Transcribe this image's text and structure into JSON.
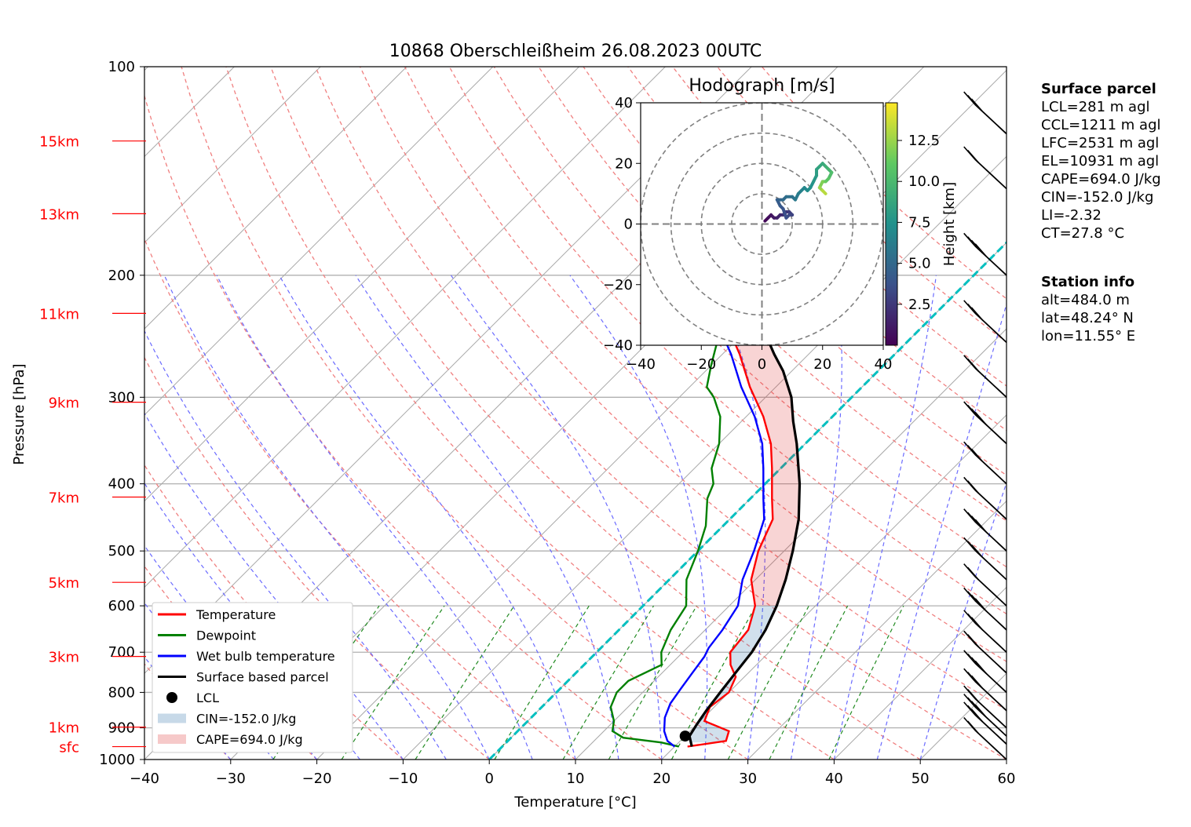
{
  "title": "10868 Oberschleißheim 26.08.2023 00UTC",
  "chart_data": {
    "type": "skew-t",
    "xlabel": "Temperature [°C]",
    "ylabel": "Pressure [hPa]",
    "xlim": [
      -40,
      60
    ],
    "ylim": [
      1000,
      100
    ],
    "x_ticks": [
      -40,
      -30,
      -20,
      -10,
      0,
      10,
      20,
      30,
      40,
      50,
      60
    ],
    "x_tick_labels": [
      "−40",
      "−30",
      "−20",
      "−10",
      "0",
      "10",
      "20",
      "30",
      "40",
      "50",
      "60"
    ],
    "y_ticks": [
      100,
      200,
      300,
      400,
      500,
      600,
      700,
      800,
      900,
      1000
    ],
    "height_labels": [
      {
        "label": "15km",
        "p": 128
      },
      {
        "label": "13km",
        "p": 163
      },
      {
        "label": "11km",
        "p": 227
      },
      {
        "label": "9km",
        "p": 305
      },
      {
        "label": "7km",
        "p": 418
      },
      {
        "label": "5km",
        "p": 555
      },
      {
        "label": "3km",
        "p": 710
      },
      {
        "label": "1km",
        "p": 898
      },
      {
        "label": "sfc",
        "p": 958
      }
    ],
    "series": [
      {
        "name": "Temperature",
        "color": "#ff0000",
        "points": [
          [
            21.5,
            958
          ],
          [
            25.3,
            940
          ],
          [
            24.5,
            910
          ],
          [
            20.5,
            880
          ],
          [
            19.5,
            840
          ],
          [
            20,
            800
          ],
          [
            19,
            760
          ],
          [
            17,
            730
          ],
          [
            15.5,
            700
          ],
          [
            15,
            650
          ],
          [
            13,
            600
          ],
          [
            9.5,
            550
          ],
          [
            7,
            500
          ],
          [
            5,
            450
          ],
          [
            2.5,
            420
          ],
          [
            -1,
            380
          ],
          [
            -4,
            350
          ],
          [
            -8,
            320
          ],
          [
            -13,
            290
          ],
          [
            -18,
            260
          ],
          [
            -22,
            240
          ],
          [
            -24,
            225
          ],
          [
            -25,
            210
          ],
          [
            -26,
            200
          ],
          [
            -28,
            190
          ],
          [
            -29,
            180
          ],
          [
            -29,
            165
          ],
          [
            -30,
            150
          ],
          [
            -31,
            140
          ],
          [
            -31,
            130
          ],
          [
            -30,
            125
          ]
        ]
      },
      {
        "name": "Dewpoint",
        "color": "#008000",
        "points": [
          [
            20.5,
            958
          ],
          [
            18,
            945
          ],
          [
            13,
            930
          ],
          [
            11,
            910
          ],
          [
            10,
            880
          ],
          [
            8,
            840
          ],
          [
            7,
            800
          ],
          [
            7,
            770
          ],
          [
            9,
            730
          ],
          [
            7.5,
            700
          ],
          [
            6,
            650
          ],
          [
            5,
            600
          ],
          [
            2,
            550
          ],
          [
            0,
            500
          ],
          [
            -2,
            460
          ],
          [
            -5,
            420
          ],
          [
            -6,
            400
          ],
          [
            -8,
            380
          ],
          [
            -10,
            350
          ],
          [
            -13,
            320
          ],
          [
            -16,
            300
          ],
          [
            -18,
            290
          ],
          [
            -20,
            270
          ],
          [
            -22,
            250
          ],
          [
            -24,
            230
          ],
          [
            -26,
            210
          ],
          [
            -28,
            195
          ],
          [
            -31,
            180
          ],
          [
            -33,
            175
          ],
          [
            -37,
            170
          ],
          [
            -38,
            160
          ],
          [
            -38,
            150
          ],
          [
            -41,
            145
          ],
          [
            -42,
            135
          ],
          [
            -44,
            130
          ],
          [
            -44,
            125
          ]
        ]
      },
      {
        "name": "Wet bulb temperature",
        "color": "#0000ff",
        "points": [
          [
            20,
            958
          ],
          [
            18.5,
            940
          ],
          [
            17,
            910
          ],
          [
            15.5,
            870
          ],
          [
            14.5,
            830
          ],
          [
            14,
            790
          ],
          [
            13.5,
            750
          ],
          [
            13,
            710
          ],
          [
            12.5,
            690
          ],
          [
            12,
            650
          ],
          [
            11,
            600
          ],
          [
            8.5,
            550
          ],
          [
            6.5,
            500
          ],
          [
            4,
            450
          ],
          [
            1.5,
            420
          ],
          [
            -2,
            380
          ],
          [
            -5,
            350
          ],
          [
            -9,
            320
          ],
          [
            -14,
            290
          ],
          [
            -19,
            260
          ],
          [
            -23,
            240
          ],
          [
            -25,
            225
          ],
          [
            -26,
            210
          ],
          [
            -27,
            200
          ],
          [
            -29,
            190
          ],
          [
            -30,
            180
          ],
          [
            -30,
            165
          ],
          [
            -31,
            150
          ],
          [
            -31.5,
            140
          ],
          [
            -31,
            130
          ],
          [
            -30,
            125
          ]
        ]
      },
      {
        "name": "Surface based parcel",
        "color": "#000000",
        "points": [
          [
            22,
            958
          ],
          [
            20.5,
            925
          ],
          [
            20,
            890
          ],
          [
            19.5,
            850
          ],
          [
            19,
            800
          ],
          [
            18.5,
            750
          ],
          [
            18,
            700
          ],
          [
            17,
            650
          ],
          [
            15.5,
            600
          ],
          [
            13.5,
            550
          ],
          [
            11,
            500
          ],
          [
            8,
            450
          ],
          [
            4,
            400
          ],
          [
            -1,
            350
          ],
          [
            -4,
            325
          ],
          [
            -7,
            300
          ],
          [
            -11,
            275
          ],
          [
            -14,
            260
          ],
          [
            -18,
            240
          ],
          [
            -22,
            220
          ],
          [
            -27,
            200
          ],
          [
            -32,
            180
          ],
          [
            -38,
            160
          ],
          [
            -44,
            140
          ],
          [
            -47,
            130
          ],
          [
            -49,
            125
          ]
        ]
      }
    ],
    "lcl": {
      "label": "LCL",
      "t": 20,
      "p": 925
    },
    "legend": [
      "Temperature",
      "Dewpoint",
      "Wet bulb temperature",
      "Surface based parcel",
      "LCL",
      "CIN=-152.0 J/kg",
      "CAPE=694.0 J/kg"
    ],
    "legend_position": "lower-left",
    "barb_pressures": [
      1000,
      950,
      925,
      900,
      850,
      800,
      750,
      700,
      650,
      600,
      550,
      500,
      450,
      400,
      350,
      300,
      250,
      200,
      150,
      125
    ],
    "hodograph": {
      "title": "Hodograph [m/s]",
      "xlim": [
        -40,
        40
      ],
      "ylim": [
        -40,
        40
      ],
      "ticks": [
        -40,
        -20,
        0,
        20,
        40
      ],
      "tick_labels": [
        "−40",
        "−20",
        "0",
        "20",
        "40"
      ],
      "rings": [
        10,
        20,
        30,
        40
      ],
      "colorbar_label": "Height [km]",
      "colorbar_ticks": [
        "2.5",
        "5.0",
        "7.5",
        "10.0",
        "12.5"
      ],
      "colorbar_values": [
        2.5,
        5.0,
        7.5,
        10.0,
        12.5
      ],
      "colorbar_range": [
        0,
        14.8
      ],
      "points": [
        [
          1,
          1
        ],
        [
          2,
          2
        ],
        [
          3,
          3
        ],
        [
          4,
          2
        ],
        [
          5,
          2
        ],
        [
          6,
          3
        ],
        [
          7,
          3
        ],
        [
          8,
          4
        ],
        [
          9,
          4
        ],
        [
          10,
          3
        ],
        [
          9,
          3
        ],
        [
          8,
          2
        ],
        [
          7,
          5
        ],
        [
          6,
          6
        ],
        [
          5,
          8
        ],
        [
          6,
          8
        ],
        [
          7,
          8
        ],
        [
          8,
          9
        ],
        [
          10,
          9
        ],
        [
          11,
          8
        ],
        [
          12,
          10
        ],
        [
          13,
          11
        ],
        [
          14,
          12
        ],
        [
          15,
          11
        ],
        [
          16,
          12
        ],
        [
          17,
          14
        ],
        [
          18,
          16
        ],
        [
          18,
          18
        ],
        [
          19,
          19
        ],
        [
          20,
          20
        ],
        [
          21,
          19
        ],
        [
          22,
          18
        ],
        [
          23,
          17
        ],
        [
          22,
          15
        ],
        [
          21,
          14
        ],
        [
          20,
          14
        ],
        [
          19,
          12
        ],
        [
          20,
          11
        ],
        [
          21,
          10
        ]
      ],
      "heights": [
        0.3,
        0.6,
        0.9,
        1.2,
        1.5,
        1.8,
        2.1,
        2.4,
        2.7,
        3.0,
        3.3,
        3.6,
        3.9,
        4.2,
        4.5,
        4.8,
        5.1,
        5.4,
        5.7,
        6.0,
        6.3,
        6.6,
        6.9,
        7.2,
        7.5,
        7.8,
        8.1,
        8.4,
        8.7,
        9.0,
        9.4,
        9.8,
        10.3,
        10.8,
        11.3,
        11.9,
        12.5,
        13.2,
        14.0
      ]
    }
  },
  "info": {
    "surface_title": "Surface parcel",
    "surface_lines": [
      "LCL=281 m agl",
      "CCL=1211 m agl",
      "LFC=2531 m agl",
      "EL=10931 m agl",
      "CAPE=694.0 J/kg",
      "CIN=-152.0 J/kg",
      "LI=-2.32",
      "CT=27.8 °C"
    ],
    "station_title": "Station info",
    "station_lines": [
      "alt=484.0 m",
      "lat=48.24° N",
      "lon=11.55° E"
    ]
  }
}
